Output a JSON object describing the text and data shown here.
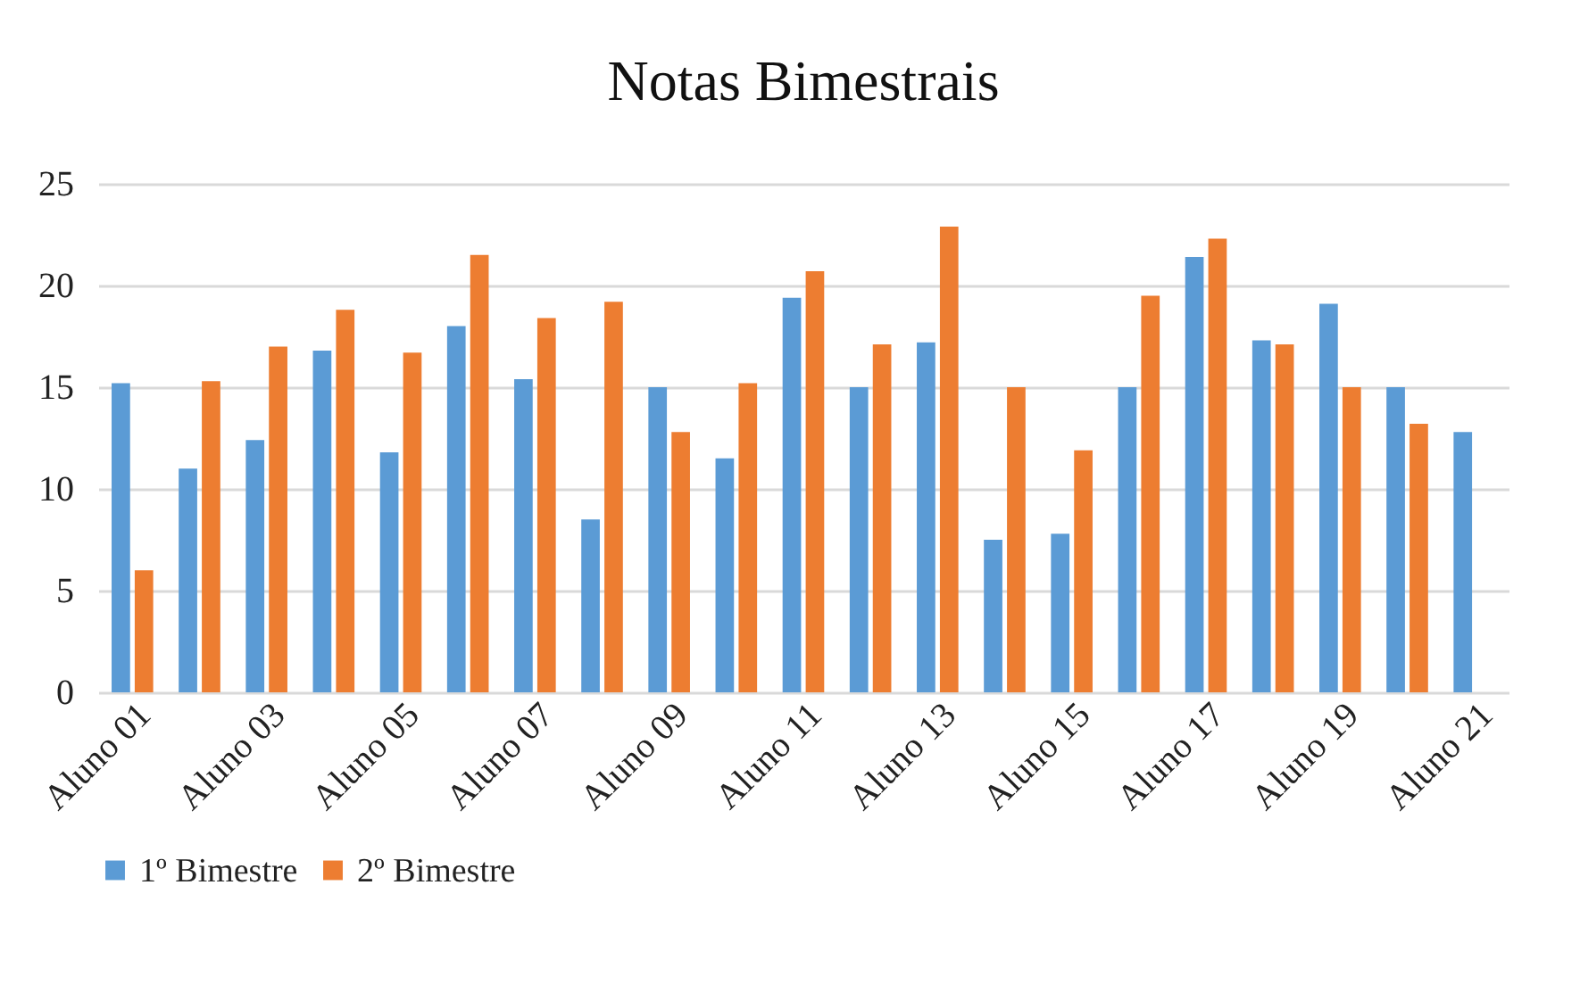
{
  "chart_data": {
    "type": "bar",
    "title": "Notas Bimestrais",
    "categories": [
      "Aluno 01",
      null,
      "Aluno 03",
      null,
      "Aluno 05",
      null,
      "Aluno 07",
      null,
      "Aluno 09",
      null,
      "Aluno 11",
      null,
      "Aluno 13",
      null,
      "Aluno 15",
      null,
      "Aluno 17",
      null,
      "Aluno 19",
      null,
      "Aluno 21"
    ],
    "series": [
      {
        "name": "1º Bimestre",
        "color": "#5b9bd5",
        "values": [
          15.2,
          11.0,
          12.4,
          16.8,
          11.8,
          18.0,
          15.4,
          8.5,
          15.0,
          11.5,
          19.4,
          15.0,
          17.2,
          7.5,
          7.8,
          15.0,
          21.4,
          17.3,
          19.1,
          15.0,
          12.8
        ]
      },
      {
        "name": "2º Bimestre",
        "color": "#ed7d31",
        "values": [
          6.0,
          15.3,
          17.0,
          18.8,
          16.7,
          21.5,
          18.4,
          19.2,
          12.8,
          15.2,
          20.7,
          17.1,
          22.9,
          15.0,
          11.9,
          19.5,
          22.3,
          17.1,
          15.0,
          13.2,
          null
        ]
      }
    ],
    "ylim": [
      0,
      25
    ],
    "yticks": [
      0,
      5,
      10,
      15,
      20,
      25
    ],
    "grid": "y",
    "legend": "bottom"
  }
}
